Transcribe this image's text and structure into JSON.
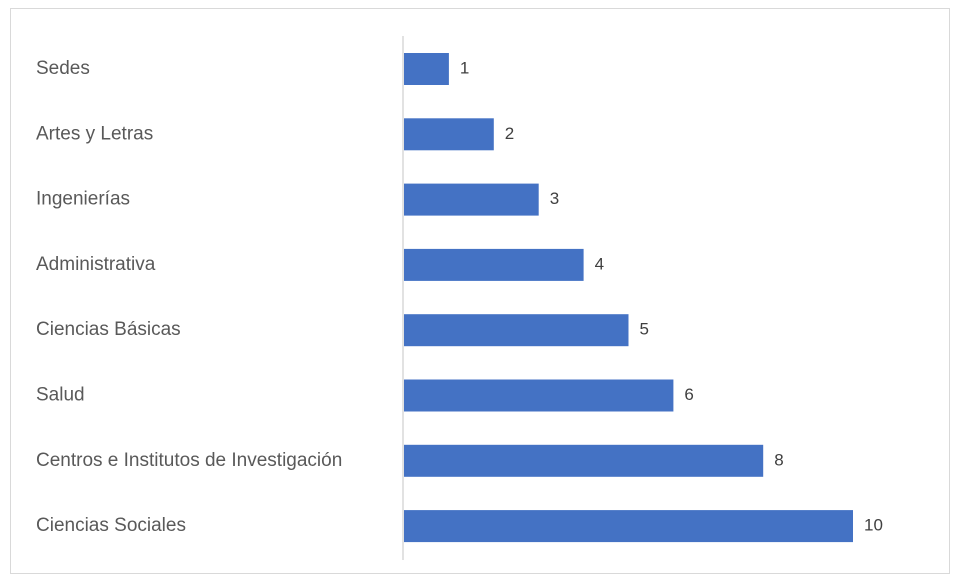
{
  "chart_data": {
    "type": "bar",
    "orientation": "horizontal",
    "categories": [
      "Sedes",
      "Artes y Letras",
      "Ingenierías",
      "Administrativa",
      "Ciencias Básicas",
      "Salud",
      "Centros e Institutos de Investigación",
      "Ciencias Sociales"
    ],
    "values": [
      1,
      2,
      3,
      4,
      5,
      6,
      8,
      10
    ],
    "xlim": [
      0,
      10
    ],
    "bar_color": "#4472C4",
    "axis_color": "#d9d9d9",
    "data_labels": true,
    "grid": false,
    "legend": "none"
  }
}
